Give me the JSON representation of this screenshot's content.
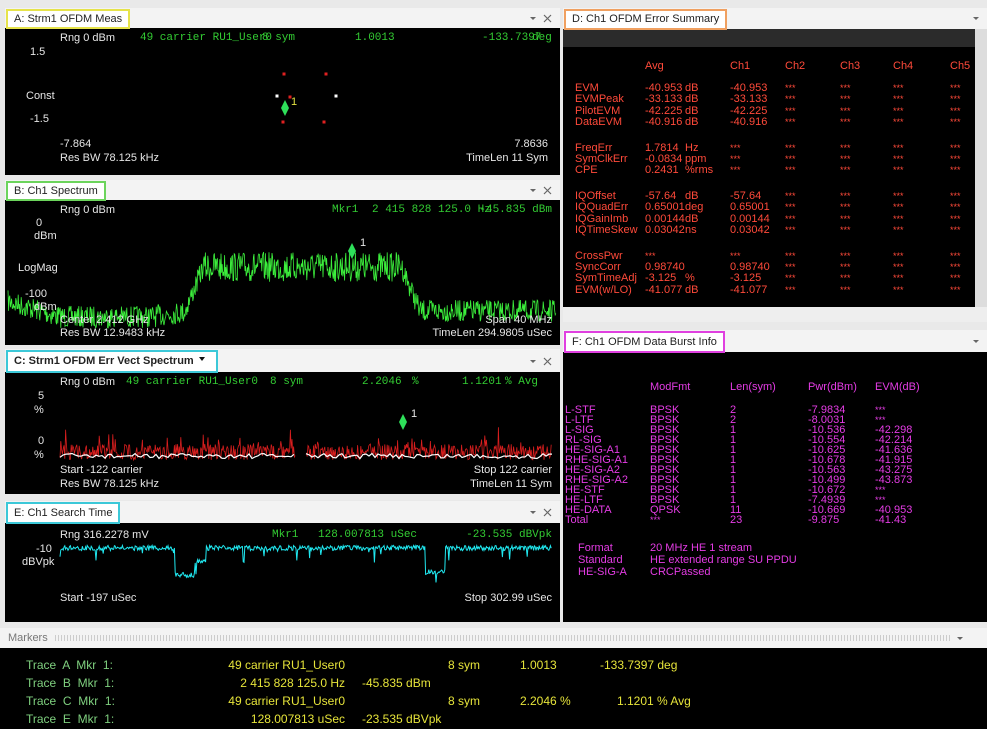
{
  "panels": {
    "A": {
      "title": "A: Strm1 OFDM Meas",
      "texts": [
        "Rng 0 dBm",
        "49 carrier RU1_User0",
        "8 sym",
        "1.0013",
        "-133.7397",
        "deg",
        "1.5",
        "Const",
        "-1.5",
        "-7.864",
        "7.8636",
        "Res BW 78.125 kHz",
        "TimeLen 11 Sym",
        "1"
      ]
    },
    "B": {
      "title": "B: Ch1 Spectrum",
      "texts": [
        "Rng 0 dBm",
        "Mkr1",
        "2 415 828 125.0 Hz",
        "-45.835 dBm",
        "0",
        "dBm",
        "LogMag",
        "-100",
        "dBm",
        "Center 2.412 GHz",
        "Span 40 MHz",
        "Res BW 12.9483 kHz",
        "TimeLen 294.9805 uSec",
        "1"
      ]
    },
    "C": {
      "title": "C: Strm1 OFDM Err Vect Spectrum",
      "texts": [
        "Rng 0 dBm",
        "49 carrier RU1_User0",
        "8 sym",
        "2.2046",
        "%",
        "1.1201",
        "% Avg",
        "5",
        "%",
        "0",
        "%",
        "Start -122 carrier",
        "Stop 122 carrier",
        "Res BW 78.125 kHz",
        "TimeLen 11 Sym",
        "1"
      ]
    },
    "E": {
      "title": "E: Ch1 Search Time",
      "texts": [
        "Rng 316.2278 mV",
        "Mkr1",
        "128.007813 uSec",
        "-23.535 dBVpk",
        "-10",
        "dBVpk",
        "Start -197 uSec",
        "Stop 302.99 uSec"
      ]
    }
  },
  "error_summary": {
    "title": "D: Ch1 OFDM Error Summary",
    "header": [
      "Avg",
      "Ch1",
      "Ch2",
      "Ch3",
      "Ch4",
      "Ch5"
    ],
    "groups": [
      [
        [
          "EVM",
          "-40.953",
          "dB",
          "-40.953",
          "***",
          "***",
          "***",
          "***"
        ],
        [
          "EVMPeak",
          "-33.133",
          "dB",
          "-33.133",
          "***",
          "***",
          "***",
          "***"
        ],
        [
          "PilotEVM",
          "-42.225",
          "dB",
          "-42.225",
          "***",
          "***",
          "***",
          "***"
        ],
        [
          "DataEVM",
          "-40.916",
          "dB",
          "-40.916",
          "***",
          "***",
          "***",
          "***"
        ]
      ],
      [
        [
          "FreqErr",
          "1.7814",
          "Hz",
          "***",
          "***",
          "***",
          "***",
          "***"
        ],
        [
          "SymClkErr",
          "-0.0834",
          "ppm",
          "***",
          "***",
          "***",
          "***",
          "***"
        ],
        [
          "CPE",
          "0.2431",
          "%rms",
          "***",
          "***",
          "***",
          "***",
          "***"
        ]
      ],
      [
        [
          "IQOffset",
          "-57.64",
          "dB",
          "-57.64",
          "***",
          "***",
          "***",
          "***"
        ],
        [
          "IQQuadErr",
          "0.65001",
          "deg",
          "0.65001",
          "***",
          "***",
          "***",
          "***"
        ],
        [
          "IQGainImb",
          "0.00144",
          "dB",
          "0.00144",
          "***",
          "***",
          "***",
          "***"
        ],
        [
          "IQTimeSkew",
          "0.03042",
          "ns",
          "0.03042",
          "***",
          "***",
          "***",
          "***"
        ]
      ],
      [
        [
          "CrossPwr",
          "***",
          "",
          "***",
          "***",
          "***",
          "***",
          "***"
        ],
        [
          "SyncCorr",
          "0.98740",
          "",
          "0.98740",
          "***",
          "***",
          "***",
          "***"
        ],
        [
          "SymTimeAdj",
          "-3.125",
          "%",
          "-3.125",
          "***",
          "***",
          "***",
          "***"
        ],
        [
          "EVM(w/LO)",
          "-41.077",
          "dB",
          "-41.077",
          "***",
          "***",
          "***",
          "***"
        ]
      ]
    ]
  },
  "burst_info": {
    "title": "F: Ch1 OFDM Data Burst Info",
    "header": [
      "ModFmt",
      "Len(sym)",
      "Pwr(dBm)",
      "EVM(dB)"
    ],
    "rows": [
      [
        "L-STF",
        "BPSK",
        "2",
        "-7.9834",
        "***"
      ],
      [
        "L-LTF",
        "BPSK",
        "2",
        "-8.0031",
        "***"
      ],
      [
        "L-SIG",
        "BPSK",
        "1",
        "-10.536",
        "-42.298"
      ],
      [
        "RL-SIG",
        "BPSK",
        "1",
        "-10.554",
        "-42.214"
      ],
      [
        "HE-SIG-A1",
        "BPSK",
        "1",
        "-10.625",
        "-41.636"
      ],
      [
        "RHE-SIG-A1",
        "BPSK",
        "1",
        "-10.678",
        "-41.915"
      ],
      [
        "HE-SIG-A2",
        "BPSK",
        "1",
        "-10.563",
        "-43.275"
      ],
      [
        "RHE-SIG-A2",
        "BPSK",
        "1",
        "-10.499",
        "-43.873"
      ],
      [
        "HE-STF",
        "BPSK",
        "1",
        "-10.672",
        "***"
      ],
      [
        "HE-LTF",
        "BPSK",
        "1",
        "-7.4939",
        "***"
      ],
      [
        "HE-DATA",
        "QPSK",
        "11",
        "-10.669",
        "-40.953"
      ],
      [
        "Total",
        "***",
        "23",
        "-9.875",
        "-41.43"
      ]
    ],
    "info": [
      [
        "Format",
        "20 MHz HE 1 stream"
      ],
      [
        "Standard",
        "HE extended range SU PPDU"
      ],
      [
        "HE-SIG-A",
        "CRCPassed"
      ]
    ]
  },
  "markers": {
    "title": "Markers",
    "rows": [
      [
        "Trace  A  Mkr  1:",
        "49 carrier RU1_User0",
        "8 sym",
        "1.0013",
        "-133.7397 deg"
      ],
      [
        "Trace  B  Mkr  1:",
        "2 415 828 125.0 Hz",
        "-45.835 dBm"
      ],
      [
        "Trace  C  Mkr  1:",
        "49 carrier RU1_User0",
        "8 sym",
        "2.2046 %",
        "1.1201 % Avg"
      ],
      [
        "Trace  E  Mkr  1:",
        "128.007813 uSec",
        "-23.535 dBVpk"
      ]
    ]
  }
}
